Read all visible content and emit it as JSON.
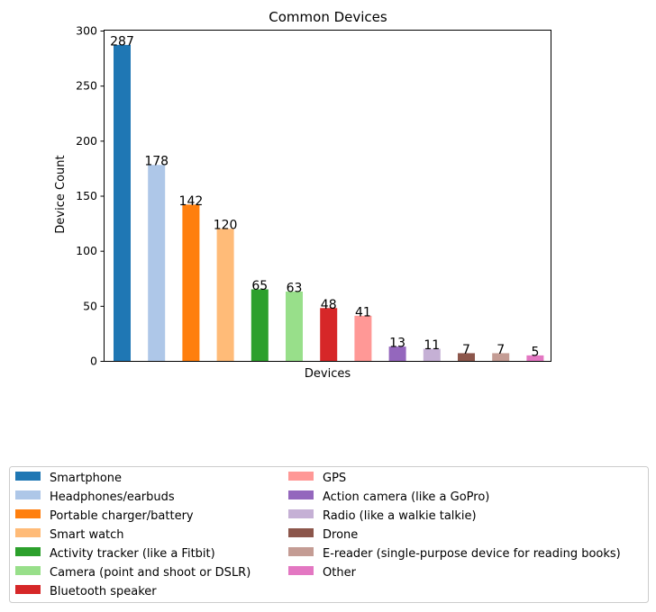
{
  "chart_data": {
    "type": "bar",
    "title": "Common Devices",
    "xlabel": "Devices",
    "ylabel": "Device Count",
    "ylim": [
      0,
      300
    ],
    "yticks": [
      0,
      50,
      100,
      150,
      200,
      250,
      300
    ],
    "grid": false,
    "legend_placement": "below",
    "categories": [
      "Smartphone",
      "Headphones/earbuds",
      "Portable charger/battery",
      "Smart watch",
      "Activity tracker (like a Fitbit)",
      "Camera (point and shoot or DSLR)",
      "Bluetooth speaker",
      "GPS",
      "Action camera (like a GoPro)",
      "Radio (like a walkie talkie)",
      "Drone",
      "E-reader (single-purpose device for reading books)",
      "Other"
    ],
    "values": [
      287,
      178,
      142,
      120,
      65,
      63,
      48,
      41,
      13,
      11,
      7,
      7,
      5
    ],
    "colors": [
      "#1f77b4",
      "#aec7e8",
      "#ff7f0e",
      "#ffbb78",
      "#2ca02c",
      "#98df8a",
      "#d62728",
      "#ff9896",
      "#9467bd",
      "#c5b0d5",
      "#8c564b",
      "#c49c94",
      "#e377c2"
    ]
  }
}
